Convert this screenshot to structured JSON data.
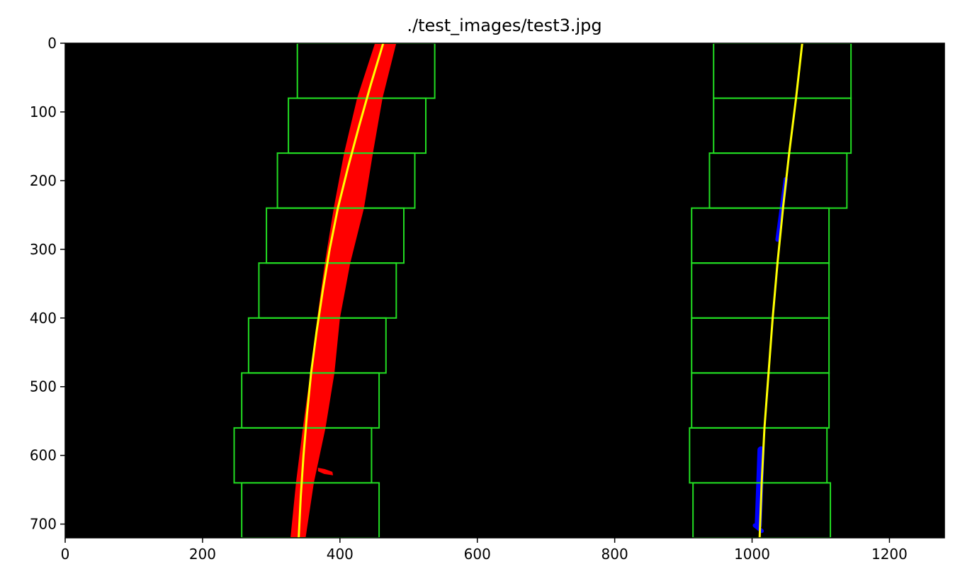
{
  "chart_data": {
    "type": "scatter",
    "title": "./test_images/test3.jpg",
    "xlabel": "",
    "ylabel": "",
    "xlim": [
      0,
      1280
    ],
    "ylim": [
      720,
      0
    ],
    "x_ticks": [
      0,
      200,
      400,
      600,
      800,
      1000,
      1200
    ],
    "y_ticks": [
      0,
      100,
      200,
      300,
      400,
      500,
      600,
      700
    ],
    "x_tick_labels": [
      "0",
      "200",
      "400",
      "600",
      800,
      "1000",
      "1200"
    ],
    "y_tick_labels": [
      "0",
      "100",
      "200",
      "300",
      "400",
      "500",
      "600",
      "700"
    ],
    "grid": false,
    "background_color": "#000000",
    "window_color": "#22dd22",
    "left_pixel_color": "#ff0000",
    "right_pixel_color": "#0000ff",
    "fit_color": "#ffff00",
    "windows": {
      "left": [
        {
          "x0": 338,
          "x1": 538,
          "y0": 0,
          "y1": 80
        },
        {
          "x0": 325,
          "x1": 525,
          "y0": 80,
          "y1": 160
        },
        {
          "x0": 309,
          "x1": 509,
          "y0": 160,
          "y1": 240
        },
        {
          "x0": 293,
          "x1": 493,
          "y0": 240,
          "y1": 320
        },
        {
          "x0": 282,
          "x1": 482,
          "y0": 320,
          "y1": 400
        },
        {
          "x0": 267,
          "x1": 467,
          "y0": 400,
          "y1": 480
        },
        {
          "x0": 257,
          "x1": 457,
          "y0": 480,
          "y1": 560
        },
        {
          "x0": 246,
          "x1": 446,
          "y0": 560,
          "y1": 640
        },
        {
          "x0": 257,
          "x1": 457,
          "y0": 640,
          "y1": 720
        }
      ],
      "right": [
        {
          "x0": 944,
          "x1": 1144,
          "y0": 0,
          "y1": 80
        },
        {
          "x0": 944,
          "x1": 1144,
          "y0": 80,
          "y1": 160
        },
        {
          "x0": 938,
          "x1": 1138,
          "y0": 160,
          "y1": 240
        },
        {
          "x0": 912,
          "x1": 1112,
          "y0": 240,
          "y1": 320
        },
        {
          "x0": 912,
          "x1": 1112,
          "y0": 320,
          "y1": 400
        },
        {
          "x0": 912,
          "x1": 1112,
          "y0": 400,
          "y1": 480
        },
        {
          "x0": 912,
          "x1": 1112,
          "y0": 480,
          "y1": 560
        },
        {
          "x0": 909,
          "x1": 1109,
          "y0": 560,
          "y1": 640
        },
        {
          "x0": 914,
          "x1": 1114,
          "y0": 640,
          "y1": 720
        }
      ]
    },
    "left_lane_pixels": [
      {
        "y": 0,
        "x_min": 451,
        "x_max": 482
      },
      {
        "y": 80,
        "x_min": 425,
        "x_max": 462
      },
      {
        "y": 160,
        "x_min": 406,
        "x_max": 448
      },
      {
        "y": 240,
        "x_min": 391,
        "x_max": 435
      },
      {
        "y": 320,
        "x_min": 378,
        "x_max": 415
      },
      {
        "y": 400,
        "x_min": 367,
        "x_max": 400
      },
      {
        "y": 480,
        "x_min": 357,
        "x_max": 392
      },
      {
        "y": 560,
        "x_min": 346,
        "x_max": 379
      },
      {
        "y": 640,
        "x_min": 336,
        "x_max": 362
      },
      {
        "y": 720,
        "x_min": 328,
        "x_max": 350
      }
    ],
    "left_lane_blob": [
      {
        "x": 368,
        "y": 618
      },
      {
        "x": 378,
        "y": 620
      },
      {
        "x": 389,
        "y": 624
      },
      {
        "x": 390,
        "y": 629
      },
      {
        "x": 377,
        "y": 627
      },
      {
        "x": 368,
        "y": 623
      }
    ],
    "right_lane_pixel_segments": [
      {
        "x0": 1049,
        "y0": 198,
        "x1": 1037,
        "y1": 286,
        "width": 6
      },
      {
        "x0": 1013,
        "y0": 592,
        "x1": 1009,
        "y1": 702,
        "width": 10
      },
      {
        "x0": 1004,
        "y0": 702,
        "x1": 1014,
        "y1": 710,
        "width": 6
      }
    ],
    "series": [
      {
        "name": "left_fit",
        "points": [
          {
            "x": 463,
            "y": 0
          },
          {
            "x": 445,
            "y": 60
          },
          {
            "x": 428,
            "y": 120
          },
          {
            "x": 412,
            "y": 180
          },
          {
            "x": 397,
            "y": 240
          },
          {
            "x": 385,
            "y": 300
          },
          {
            "x": 375,
            "y": 360
          },
          {
            "x": 366,
            "y": 420
          },
          {
            "x": 358,
            "y": 480
          },
          {
            "x": 352,
            "y": 540
          },
          {
            "x": 347,
            "y": 600
          },
          {
            "x": 343,
            "y": 660
          },
          {
            "x": 340,
            "y": 720
          }
        ]
      },
      {
        "name": "right_fit",
        "points": [
          {
            "x": 1073,
            "y": 0
          },
          {
            "x": 1064,
            "y": 80
          },
          {
            "x": 1054,
            "y": 160
          },
          {
            "x": 1045,
            "y": 240
          },
          {
            "x": 1037,
            "y": 320
          },
          {
            "x": 1030,
            "y": 400
          },
          {
            "x": 1024,
            "y": 480
          },
          {
            "x": 1018,
            "y": 560
          },
          {
            "x": 1014,
            "y": 640
          },
          {
            "x": 1011,
            "y": 720
          }
        ]
      }
    ]
  }
}
